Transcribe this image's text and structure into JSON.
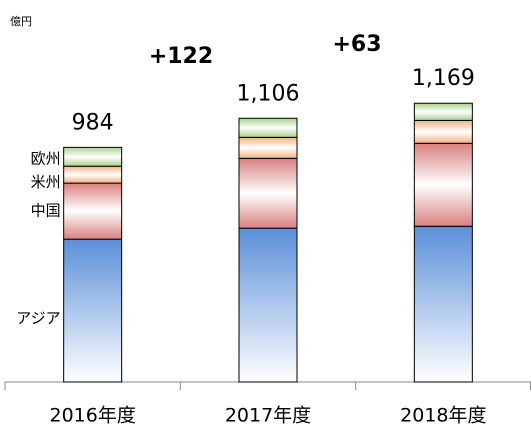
{
  "chart_data": {
    "type": "stacked_bar",
    "unit": "億円",
    "categories": [
      "2016年度",
      "2017年度",
      "2018年度"
    ],
    "series": [
      {
        "name": "アジア",
        "color": "#5b8fd9",
        "values": [
          599,
          645,
          653
        ]
      },
      {
        "name": "中国",
        "color": "#d98080",
        "values": [
          235,
          293,
          348
        ]
      },
      {
        "name": "米州",
        "color": "#f4b183",
        "values": [
          71,
          88,
          96
        ]
      },
      {
        "name": "欧州",
        "color": "#a9d18e",
        "values": [
          79,
          80,
          72
        ]
      }
    ],
    "totals": [
      984,
      1106,
      1169
    ],
    "value_labels": [
      "984",
      "1,106",
      "1,169"
    ],
    "annotations": [
      "+122",
      "+63"
    ],
    "ylim": [
      0,
      1300
    ]
  }
}
